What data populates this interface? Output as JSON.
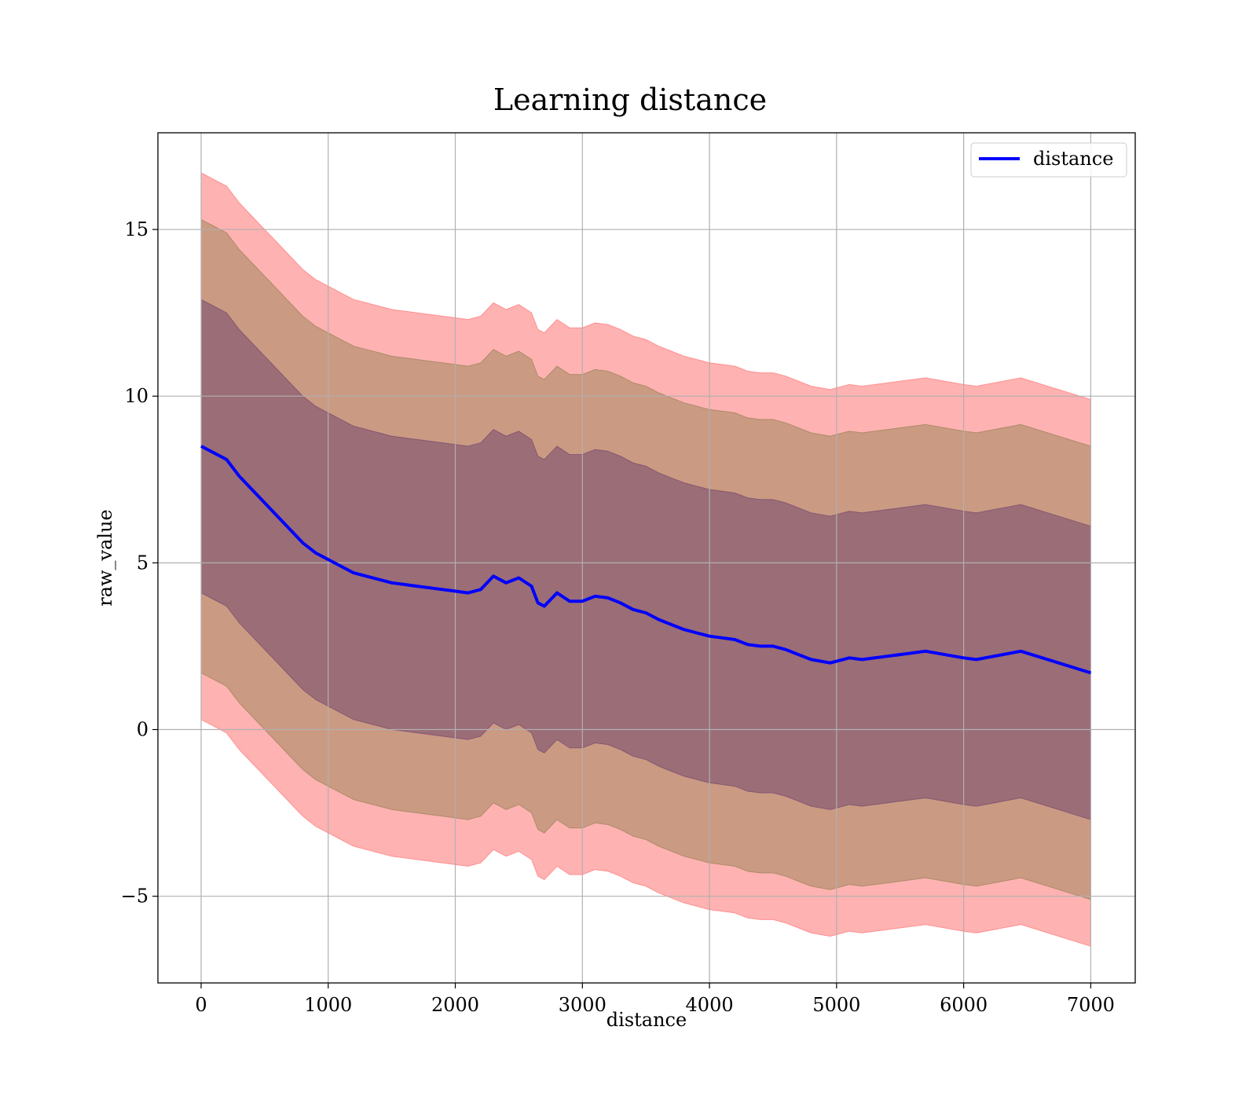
{
  "chart_data": {
    "type": "line",
    "title": "Learning distance",
    "xlabel": "distance",
    "ylabel": "raw_value",
    "xlim": [
      -340,
      7350
    ],
    "ylim": [
      -7.6,
      17.9
    ],
    "xticks": [
      0,
      1000,
      2000,
      3000,
      4000,
      5000,
      6000,
      7000
    ],
    "yticks": [
      -5,
      0,
      5,
      10,
      15
    ],
    "ytick_labels": [
      "−5",
      "0",
      "5",
      "10",
      "15"
    ],
    "grid": true,
    "legend": {
      "position": "top-right",
      "entries": [
        "distance"
      ]
    },
    "series": [
      {
        "name": "distance",
        "color": "#0000ff",
        "x": [
          0,
          100,
          200,
          300,
          400,
          500,
          600,
          700,
          800,
          900,
          1000,
          1100,
          1200,
          1300,
          1400,
          1500,
          1600,
          1700,
          1800,
          1900,
          2000,
          2100,
          2200,
          2300,
          2400,
          2500,
          2600,
          2650,
          2700,
          2800,
          2900,
          3000,
          3100,
          3200,
          3300,
          3400,
          3500,
          3600,
          3700,
          3800,
          3900,
          4000,
          4100,
          4200,
          4300,
          4400,
          4500,
          4600,
          4700,
          4800,
          4950,
          5100,
          5200,
          5400,
          5500,
          5700,
          6000,
          6100,
          6450,
          7000
        ],
        "y": [
          8.5,
          8.3,
          8.1,
          7.6,
          7.2,
          6.8,
          6.4,
          6.0,
          5.6,
          5.3,
          5.1,
          4.9,
          4.7,
          4.6,
          4.5,
          4.4,
          4.35,
          4.3,
          4.25,
          4.2,
          4.15,
          4.1,
          4.2,
          4.6,
          4.4,
          4.55,
          4.3,
          3.8,
          3.7,
          4.1,
          3.85,
          3.85,
          4.0,
          3.95,
          3.8,
          3.6,
          3.5,
          3.3,
          3.15,
          3.0,
          2.9,
          2.8,
          2.75,
          2.7,
          2.55,
          2.5,
          2.5,
          2.4,
          2.25,
          2.1,
          2.0,
          2.15,
          2.1,
          2.2,
          2.25,
          2.35,
          2.15,
          2.1,
          2.35,
          1.7
        ]
      }
    ],
    "bands": [
      {
        "color": "#ff6666",
        "opacity": 0.5,
        "offset": 8.2
      },
      {
        "color": "#8b7d4a",
        "opacity": 0.45,
        "offset": 6.8
      },
      {
        "color": "#6b3f6b",
        "opacity": 0.5,
        "offset": 4.4
      }
    ]
  }
}
